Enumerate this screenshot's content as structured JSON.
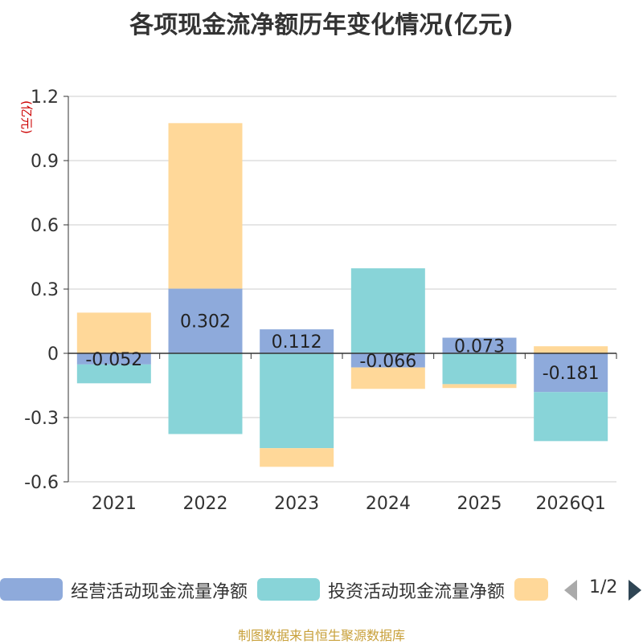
{
  "title": "各项现金流净额历年变化情况(亿元)",
  "footer": "制图数据来自恒生聚源数据库",
  "pager": "1/2",
  "chart_data": {
    "type": "bar",
    "stacked": true,
    "title": "各项现金流净额历年变化情况(亿元)",
    "ylabel": "(亿元)",
    "ylim": [
      -0.6,
      1.2
    ],
    "yticks": [
      1.2,
      0.9,
      0.6,
      0.3,
      0,
      -0.3,
      -0.6
    ],
    "ytick_labels": [
      "1.2",
      "0.9",
      "0.6",
      "0.3",
      "0",
      "-0.3",
      "-0.6"
    ],
    "categories": [
      "2021",
      "2022",
      "2023",
      "2024",
      "2025",
      "2026Q1"
    ],
    "series": [
      {
        "name": "经营活动现金流量净额",
        "color": "#8eaadb",
        "values": [
          -0.052,
          0.302,
          0.112,
          -0.066,
          0.073,
          -0.181
        ],
        "labels": [
          "-0.052",
          "0.302",
          "0.112",
          "-0.066",
          "0.073",
          "-0.181"
        ]
      },
      {
        "name": "投资活动现金流量净额",
        "color": "#88d4d8",
        "values": [
          -0.088,
          -0.377,
          -0.443,
          0.397,
          -0.144,
          -0.229
        ]
      },
      {
        "name": "",
        "color": "#ffd899",
        "values": [
          0.19,
          0.773,
          -0.087,
          -0.1,
          -0.018,
          0.033
        ]
      }
    ],
    "legend": "bottom"
  }
}
